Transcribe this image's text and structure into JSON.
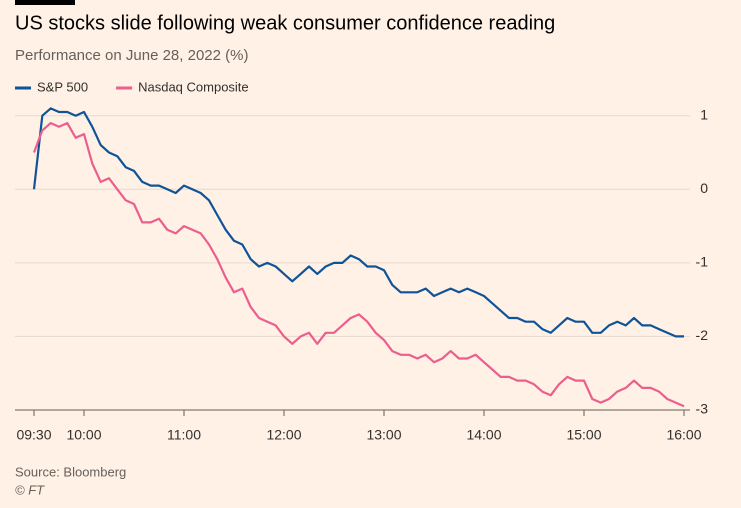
{
  "chart_data": {
    "type": "line",
    "title": "US stocks slide following weak consumer confidence reading",
    "subtitle": "Performance on June 28, 2022 (%)",
    "source": "Source: Bloomberg",
    "credit": "© FT",
    "x": [
      "09:30",
      "09:35",
      "09:40",
      "09:45",
      "09:50",
      "09:55",
      "10:00",
      "10:05",
      "10:10",
      "10:15",
      "10:20",
      "10:25",
      "10:30",
      "10:35",
      "10:40",
      "10:45",
      "10:50",
      "10:55",
      "11:00",
      "11:05",
      "11:10",
      "11:15",
      "11:20",
      "11:25",
      "11:30",
      "11:35",
      "11:40",
      "11:45",
      "11:50",
      "11:55",
      "12:00",
      "12:05",
      "12:10",
      "12:15",
      "12:20",
      "12:25",
      "12:30",
      "12:35",
      "12:40",
      "12:45",
      "12:50",
      "12:55",
      "13:00",
      "13:05",
      "13:10",
      "13:15",
      "13:20",
      "13:25",
      "13:30",
      "13:35",
      "13:40",
      "13:45",
      "13:50",
      "13:55",
      "14:00",
      "14:05",
      "14:10",
      "14:15",
      "14:20",
      "14:25",
      "14:30",
      "14:35",
      "14:40",
      "14:45",
      "14:50",
      "14:55",
      "15:00",
      "15:05",
      "15:10",
      "15:15",
      "15:20",
      "15:25",
      "15:30",
      "15:35",
      "15:40",
      "15:45",
      "15:50",
      "15:55",
      "16:00"
    ],
    "series": [
      {
        "name": "S&P 500",
        "color": "#0f5499",
        "values": [
          0,
          1.0,
          1.1,
          1.05,
          1.05,
          1.0,
          1.05,
          0.85,
          0.6,
          0.5,
          0.45,
          0.3,
          0.25,
          0.1,
          0.05,
          0.05,
          0.0,
          -0.05,
          0.05,
          0.0,
          -0.05,
          -0.15,
          -0.35,
          -0.55,
          -0.7,
          -0.75,
          -0.95,
          -1.05,
          -1.0,
          -1.05,
          -1.15,
          -1.25,
          -1.15,
          -1.05,
          -1.15,
          -1.05,
          -1.0,
          -1.0,
          -0.9,
          -0.95,
          -1.05,
          -1.05,
          -1.1,
          -1.3,
          -1.4,
          -1.4,
          -1.4,
          -1.35,
          -1.45,
          -1.4,
          -1.35,
          -1.4,
          -1.35,
          -1.4,
          -1.45,
          -1.55,
          -1.65,
          -1.75,
          -1.75,
          -1.8,
          -1.8,
          -1.9,
          -1.95,
          -1.85,
          -1.75,
          -1.8,
          -1.8,
          -1.95,
          -1.95,
          -1.85,
          -1.8,
          -1.85,
          -1.75,
          -1.85,
          -1.85,
          -1.9,
          -1.95,
          -2.0,
          -2.0
        ]
      },
      {
        "name": "Nasdaq Composite",
        "color": "#eb5e8d",
        "values": [
          0.5,
          0.8,
          0.9,
          0.85,
          0.9,
          0.7,
          0.75,
          0.35,
          0.1,
          0.15,
          0.0,
          -0.15,
          -0.2,
          -0.45,
          -0.45,
          -0.4,
          -0.55,
          -0.6,
          -0.5,
          -0.55,
          -0.6,
          -0.75,
          -0.95,
          -1.2,
          -1.4,
          -1.35,
          -1.6,
          -1.75,
          -1.8,
          -1.85,
          -2.0,
          -2.1,
          -2.0,
          -1.95,
          -2.1,
          -1.95,
          -1.95,
          -1.85,
          -1.75,
          -1.7,
          -1.8,
          -1.95,
          -2.05,
          -2.2,
          -2.25,
          -2.25,
          -2.3,
          -2.25,
          -2.35,
          -2.3,
          -2.2,
          -2.3,
          -2.3,
          -2.25,
          -2.35,
          -2.45,
          -2.55,
          -2.55,
          -2.6,
          -2.6,
          -2.65,
          -2.75,
          -2.8,
          -2.65,
          -2.55,
          -2.6,
          -2.6,
          -2.85,
          -2.9,
          -2.85,
          -2.75,
          -2.7,
          -2.6,
          -2.7,
          -2.7,
          -2.75,
          -2.85,
          -2.9,
          -2.95
        ]
      }
    ],
    "xticks": [
      "09:30",
      "10:00",
      "11:00",
      "12:00",
      "13:00",
      "14:00",
      "15:00",
      "16:00"
    ],
    "ylim": [
      -3,
      1.2
    ],
    "yticks": [
      1,
      0,
      -1,
      -2,
      -3
    ],
    "grid": true,
    "legend": "top-left"
  }
}
